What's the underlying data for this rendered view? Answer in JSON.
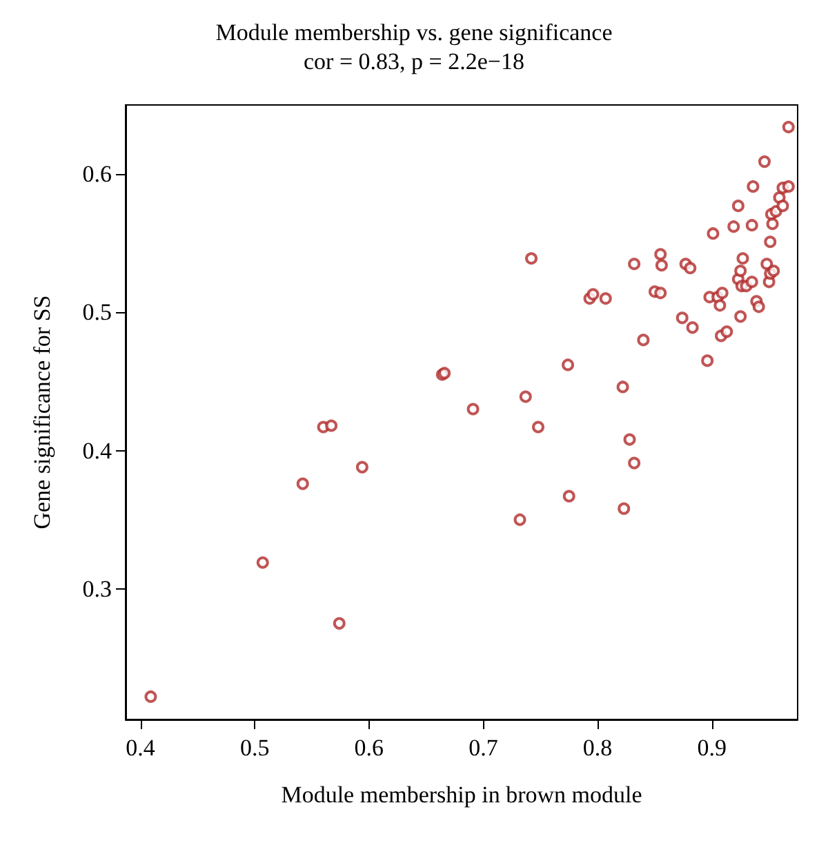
{
  "chart_data": {
    "type": "scatter",
    "title": "Module membership vs. gene significance",
    "subtitle": "cor = 0.83, p = 2.2e−18",
    "xlabel": "Module membership in brown module",
    "ylabel": "Gene significance for SS",
    "x": [
      0.409,
      0.507,
      0.574,
      0.542,
      0.56,
      0.567,
      0.594,
      0.664,
      0.666,
      0.691,
      0.737,
      0.748,
      0.732,
      0.742,
      0.774,
      0.775,
      0.793,
      0.796,
      0.807,
      0.822,
      0.828,
      0.832,
      0.823,
      0.832,
      0.84,
      0.85,
      0.855,
      0.855,
      0.856,
      0.874,
      0.877,
      0.881,
      0.883,
      0.896,
      0.898,
      0.901,
      0.905,
      0.909,
      0.907,
      0.908,
      0.913,
      0.919,
      0.923,
      0.923,
      0.925,
      0.927,
      0.925,
      0.926,
      0.93,
      0.935,
      0.936,
      0.935,
      0.939,
      0.941,
      0.946,
      0.948,
      0.951,
      0.95,
      0.951,
      0.954,
      0.952,
      0.953,
      0.956,
      0.959,
      0.962,
      0.962,
      0.967,
      0.967
    ],
    "series": [
      {
        "color": "#b22a2a",
        "values": [
          0.222,
          0.319,
          0.275,
          0.376,
          0.417,
          0.418,
          0.388,
          0.455,
          0.456,
          0.43,
          0.439,
          0.417,
          0.35,
          0.539,
          0.462,
          0.367,
          0.51,
          0.513,
          0.51,
          0.446,
          0.408,
          0.391,
          0.358,
          0.535,
          0.48,
          0.515,
          0.514,
          0.542,
          0.534,
          0.496,
          0.535,
          0.532,
          0.489,
          0.465,
          0.511,
          0.557,
          0.511,
          0.514,
          0.505,
          0.483,
          0.486,
          0.562,
          0.577,
          0.524,
          0.53,
          0.539,
          0.497,
          0.519,
          0.519,
          0.563,
          0.591,
          0.522,
          0.508,
          0.504,
          0.609,
          0.535,
          0.551,
          0.522,
          0.528,
          0.53,
          0.571,
          0.564,
          0.573,
          0.583,
          0.577,
          0.59,
          0.591,
          0.634
        ]
      }
    ],
    "xlim": [
      0.387,
      0.975
    ],
    "ylim": [
      0.2055,
      0.65
    ],
    "xticks": [
      0.4,
      0.5,
      0.6,
      0.7,
      0.8,
      0.9
    ],
    "yticks": [
      0.3,
      0.4,
      0.5,
      0.6
    ],
    "grid": false,
    "marker": "circle"
  }
}
